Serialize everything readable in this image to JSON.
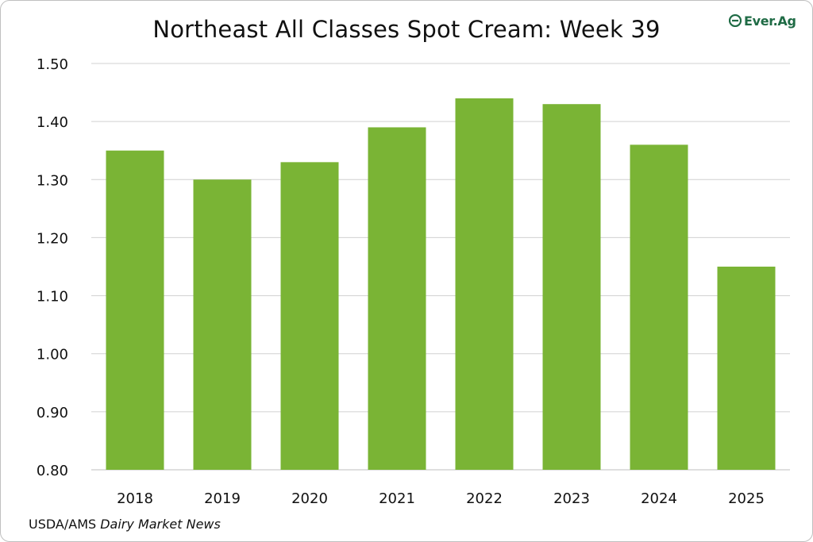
{
  "source": {
    "prefix": "USDA/AMS ",
    "publication": "Dairy Market News"
  },
  "logo": {
    "text": "Ever.Ag",
    "icon": "ever-ag-logo-icon",
    "color": "#1f6b45"
  },
  "colors": {
    "bar": "#7ab435",
    "grid": "#d0d0d0"
  },
  "chart_data": {
    "type": "bar",
    "title": "Northeast All Classes Spot Cream: Week 39",
    "xlabel": "",
    "ylabel": "",
    "categories": [
      "2018",
      "2019",
      "2020",
      "2021",
      "2022",
      "2023",
      "2024",
      "2025"
    ],
    "values": [
      1.35,
      1.3,
      1.33,
      1.39,
      1.44,
      1.43,
      1.36,
      1.15
    ],
    "ylim": [
      0.8,
      1.5
    ],
    "yticks": [
      "0.80",
      "0.90",
      "1.00",
      "1.10",
      "1.20",
      "1.30",
      "1.40",
      "1.50"
    ],
    "grid": true,
    "legend": "none"
  }
}
